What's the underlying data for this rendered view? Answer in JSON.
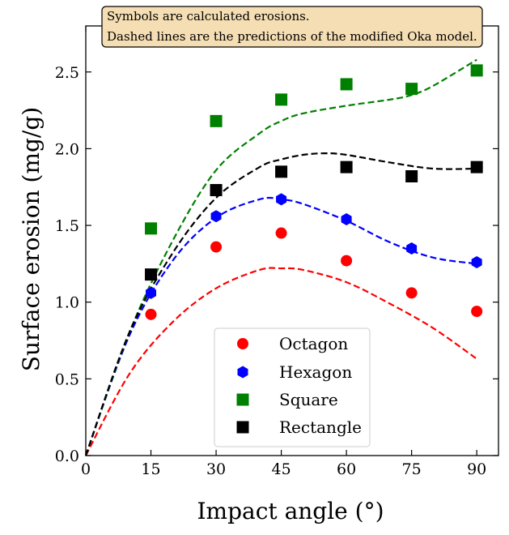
{
  "chart_data": {
    "type": "scatter",
    "xlabel": "Impact angle (°)",
    "ylabel": "Surface erosion (mg/g)",
    "xlim": [
      0,
      95
    ],
    "ylim": [
      0,
      2.8
    ],
    "xticks": [
      0,
      15,
      30,
      45,
      60,
      75,
      90
    ],
    "yticks": [
      0.0,
      0.5,
      1.0,
      1.5,
      2.0,
      2.5
    ],
    "xtick_labels": [
      "0",
      "15",
      "30",
      "45",
      "60",
      "75",
      "90"
    ],
    "ytick_labels": [
      "0.0",
      "0.5",
      "1.0",
      "1.5",
      "2.0",
      "2.5"
    ],
    "grid": false,
    "legend_position": "bottom-center",
    "annotation": [
      "Symbols are calculated erosions.",
      "Dashed lines are the predictions of the modified Oka model."
    ],
    "annotation_background": "#f5deb3",
    "series": [
      {
        "name": "Octagon",
        "marker": "circle",
        "color": "#ff0000",
        "x": [
          15,
          30,
          45,
          60,
          75,
          90
        ],
        "y": [
          0.92,
          1.36,
          1.45,
          1.27,
          1.06,
          0.94
        ],
        "model_x": [
          0,
          10,
          20,
          30,
          40,
          45,
          50,
          60,
          70,
          80,
          90
        ],
        "model_y": [
          0.0,
          0.53,
          0.87,
          1.09,
          1.21,
          1.22,
          1.21,
          1.13,
          0.99,
          0.83,
          0.63
        ]
      },
      {
        "name": "Hexagon",
        "marker": "hexagon",
        "color": "#0000ff",
        "x": [
          15,
          30,
          45,
          60,
          75,
          90
        ],
        "y": [
          1.06,
          1.56,
          1.67,
          1.54,
          1.35,
          1.26
        ],
        "model_x": [
          0,
          10,
          20,
          30,
          40,
          45,
          50,
          60,
          70,
          80,
          90
        ],
        "model_y": [
          0.0,
          0.78,
          1.27,
          1.55,
          1.67,
          1.67,
          1.64,
          1.53,
          1.39,
          1.29,
          1.25
        ]
      },
      {
        "name": "Square",
        "marker": "square",
        "color": "#008000",
        "x": [
          15,
          30,
          45,
          60,
          75,
          90
        ],
        "y": [
          1.48,
          2.18,
          2.32,
          2.42,
          2.39,
          2.51
        ],
        "model_x": [
          0,
          10,
          20,
          30,
          40,
          45,
          50,
          60,
          70,
          75,
          80,
          90
        ],
        "model_y": [
          0.0,
          0.8,
          1.4,
          1.86,
          2.1,
          2.18,
          2.23,
          2.28,
          2.32,
          2.35,
          2.41,
          2.58
        ]
      },
      {
        "name": "Rectangle",
        "marker": "square",
        "color": "#000000",
        "x": [
          15,
          30,
          45,
          60,
          75,
          90
        ],
        "y": [
          1.18,
          1.73,
          1.85,
          1.88,
          1.82,
          1.88
        ],
        "model_x": [
          0,
          10,
          20,
          30,
          40,
          45,
          50,
          55,
          60,
          70,
          80,
          90
        ],
        "model_y": [
          0.0,
          0.8,
          1.32,
          1.68,
          1.88,
          1.93,
          1.96,
          1.97,
          1.96,
          1.91,
          1.87,
          1.87
        ]
      }
    ]
  }
}
